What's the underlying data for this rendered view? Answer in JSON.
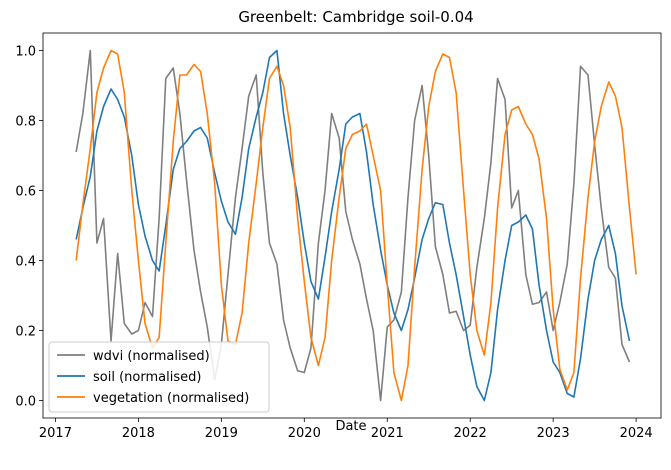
{
  "chart_data": {
    "type": "line",
    "title": "Greenbelt: Cambridge soil-0.04",
    "xlabel": "Date",
    "ylabel": "",
    "xlim": [
      2016.85,
      2024.3
    ],
    "ylim": [
      -0.05,
      1.05
    ],
    "xticks": [
      2017,
      2018,
      2019,
      2020,
      2021,
      2022,
      2023,
      2024
    ],
    "yticks": [
      0.0,
      0.2,
      0.4,
      0.6,
      0.8,
      1.0
    ],
    "ytick_labels": [
      "0.0",
      "0.2",
      "0.4",
      "0.6",
      "0.8",
      "1.0"
    ],
    "grid": false,
    "legend": "lower-left",
    "series": [
      {
        "name": "wdvi (normalised)",
        "color": "#7f7f7f",
        "points": [
          [
            2017.25,
            0.71
          ],
          [
            2017.33,
            0.82
          ],
          [
            2017.42,
            1.0
          ],
          [
            2017.5,
            0.45
          ],
          [
            2017.58,
            0.52
          ],
          [
            2017.67,
            0.17
          ],
          [
            2017.75,
            0.42
          ],
          [
            2017.83,
            0.22
          ],
          [
            2017.92,
            0.19
          ],
          [
            2018.0,
            0.2
          ],
          [
            2018.08,
            0.28
          ],
          [
            2018.17,
            0.24
          ],
          [
            2018.25,
            0.52
          ],
          [
            2018.33,
            0.92
          ],
          [
            2018.42,
            0.95
          ],
          [
            2018.5,
            0.82
          ],
          [
            2018.58,
            0.63
          ],
          [
            2018.67,
            0.43
          ],
          [
            2018.75,
            0.31
          ],
          [
            2018.83,
            0.21
          ],
          [
            2018.92,
            0.06
          ],
          [
            2019.0,
            0.16
          ],
          [
            2019.08,
            0.36
          ],
          [
            2019.17,
            0.58
          ],
          [
            2019.25,
            0.72
          ],
          [
            2019.33,
            0.87
          ],
          [
            2019.42,
            0.93
          ],
          [
            2019.5,
            0.65
          ],
          [
            2019.58,
            0.45
          ],
          [
            2019.67,
            0.39
          ],
          [
            2019.75,
            0.23
          ],
          [
            2019.83,
            0.15
          ],
          [
            2019.92,
            0.085
          ],
          [
            2020.0,
            0.08
          ],
          [
            2020.08,
            0.15
          ],
          [
            2020.17,
            0.45
          ],
          [
            2020.25,
            0.6
          ],
          [
            2020.33,
            0.82
          ],
          [
            2020.42,
            0.75
          ],
          [
            2020.5,
            0.54
          ],
          [
            2020.58,
            0.46
          ],
          [
            2020.67,
            0.39
          ],
          [
            2020.75,
            0.29
          ],
          [
            2020.83,
            0.2
          ],
          [
            2020.92,
            0.0
          ],
          [
            2021.0,
            0.21
          ],
          [
            2021.08,
            0.23
          ],
          [
            2021.17,
            0.31
          ],
          [
            2021.25,
            0.58
          ],
          [
            2021.33,
            0.8
          ],
          [
            2021.42,
            0.9
          ],
          [
            2021.5,
            0.7
          ],
          [
            2021.58,
            0.44
          ],
          [
            2021.67,
            0.36
          ],
          [
            2021.75,
            0.25
          ],
          [
            2021.83,
            0.255
          ],
          [
            2021.92,
            0.2
          ],
          [
            2022.0,
            0.215
          ],
          [
            2022.08,
            0.38
          ],
          [
            2022.17,
            0.52
          ],
          [
            2022.25,
            0.68
          ],
          [
            2022.33,
            0.92
          ],
          [
            2022.42,
            0.86
          ],
          [
            2022.5,
            0.55
          ],
          [
            2022.58,
            0.6
          ],
          [
            2022.67,
            0.36
          ],
          [
            2022.75,
            0.275
          ],
          [
            2022.83,
            0.28
          ],
          [
            2022.92,
            0.31
          ],
          [
            2023.0,
            0.2
          ],
          [
            2023.08,
            0.28
          ],
          [
            2023.17,
            0.39
          ],
          [
            2023.25,
            0.62
          ],
          [
            2023.33,
            0.955
          ],
          [
            2023.42,
            0.93
          ],
          [
            2023.5,
            0.73
          ],
          [
            2023.58,
            0.55
          ],
          [
            2023.67,
            0.38
          ],
          [
            2023.75,
            0.35
          ],
          [
            2023.83,
            0.16
          ],
          [
            2023.92,
            0.11
          ]
        ]
      },
      {
        "name": "soil (normalised)",
        "color": "#1f77b4",
        "points": [
          [
            2017.25,
            0.46
          ],
          [
            2017.33,
            0.55
          ],
          [
            2017.42,
            0.64
          ],
          [
            2017.5,
            0.77
          ],
          [
            2017.58,
            0.84
          ],
          [
            2017.67,
            0.89
          ],
          [
            2017.75,
            0.86
          ],
          [
            2017.83,
            0.81
          ],
          [
            2017.92,
            0.7
          ],
          [
            2018.0,
            0.56
          ],
          [
            2018.08,
            0.47
          ],
          [
            2018.17,
            0.4
          ],
          [
            2018.25,
            0.37
          ],
          [
            2018.33,
            0.5
          ],
          [
            2018.42,
            0.66
          ],
          [
            2018.5,
            0.72
          ],
          [
            2018.58,
            0.74
          ],
          [
            2018.67,
            0.77
          ],
          [
            2018.75,
            0.78
          ],
          [
            2018.83,
            0.75
          ],
          [
            2018.92,
            0.65
          ],
          [
            2019.0,
            0.57
          ],
          [
            2019.08,
            0.51
          ],
          [
            2019.17,
            0.475
          ],
          [
            2019.25,
            0.58
          ],
          [
            2019.33,
            0.72
          ],
          [
            2019.42,
            0.81
          ],
          [
            2019.5,
            0.88
          ],
          [
            2019.58,
            0.98
          ],
          [
            2019.67,
            1.0
          ],
          [
            2019.75,
            0.82
          ],
          [
            2019.83,
            0.7
          ],
          [
            2019.92,
            0.58
          ],
          [
            2020.0,
            0.45
          ],
          [
            2020.08,
            0.34
          ],
          [
            2020.17,
            0.29
          ],
          [
            2020.25,
            0.41
          ],
          [
            2020.33,
            0.54
          ],
          [
            2020.42,
            0.66
          ],
          [
            2020.5,
            0.79
          ],
          [
            2020.58,
            0.81
          ],
          [
            2020.67,
            0.82
          ],
          [
            2020.75,
            0.71
          ],
          [
            2020.83,
            0.56
          ],
          [
            2020.92,
            0.43
          ],
          [
            2021.0,
            0.33
          ],
          [
            2021.08,
            0.25
          ],
          [
            2021.17,
            0.2
          ],
          [
            2021.25,
            0.26
          ],
          [
            2021.33,
            0.35
          ],
          [
            2021.42,
            0.46
          ],
          [
            2021.5,
            0.52
          ],
          [
            2021.58,
            0.565
          ],
          [
            2021.67,
            0.56
          ],
          [
            2021.75,
            0.45
          ],
          [
            2021.83,
            0.36
          ],
          [
            2021.92,
            0.24
          ],
          [
            2022.0,
            0.13
          ],
          [
            2022.08,
            0.04
          ],
          [
            2022.17,
            0.0
          ],
          [
            2022.25,
            0.08
          ],
          [
            2022.33,
            0.26
          ],
          [
            2022.42,
            0.4
          ],
          [
            2022.5,
            0.5
          ],
          [
            2022.58,
            0.51
          ],
          [
            2022.67,
            0.53
          ],
          [
            2022.75,
            0.49
          ],
          [
            2022.83,
            0.33
          ],
          [
            2022.92,
            0.2
          ],
          [
            2023.0,
            0.11
          ],
          [
            2023.08,
            0.08
          ],
          [
            2023.17,
            0.02
          ],
          [
            2023.25,
            0.01
          ],
          [
            2023.33,
            0.12
          ],
          [
            2023.42,
            0.29
          ],
          [
            2023.5,
            0.4
          ],
          [
            2023.58,
            0.46
          ],
          [
            2023.67,
            0.5
          ],
          [
            2023.75,
            0.42
          ],
          [
            2023.83,
            0.27
          ],
          [
            2023.92,
            0.17
          ]
        ]
      },
      {
        "name": "vegetation (normalised)",
        "color": "#ff7f0e",
        "points": [
          [
            2017.25,
            0.4
          ],
          [
            2017.33,
            0.56
          ],
          [
            2017.42,
            0.72
          ],
          [
            2017.5,
            0.88
          ],
          [
            2017.58,
            0.95
          ],
          [
            2017.67,
            1.0
          ],
          [
            2017.75,
            0.99
          ],
          [
            2017.83,
            0.88
          ],
          [
            2017.92,
            0.6
          ],
          [
            2018.0,
            0.4
          ],
          [
            2018.08,
            0.22
          ],
          [
            2018.17,
            0.15
          ],
          [
            2018.25,
            0.18
          ],
          [
            2018.33,
            0.45
          ],
          [
            2018.42,
            0.74
          ],
          [
            2018.5,
            0.93
          ],
          [
            2018.58,
            0.93
          ],
          [
            2018.67,
            0.96
          ],
          [
            2018.75,
            0.94
          ],
          [
            2018.83,
            0.82
          ],
          [
            2018.92,
            0.62
          ],
          [
            2019.0,
            0.33
          ],
          [
            2019.08,
            0.17
          ],
          [
            2019.17,
            0.16
          ],
          [
            2019.25,
            0.25
          ],
          [
            2019.33,
            0.45
          ],
          [
            2019.42,
            0.62
          ],
          [
            2019.5,
            0.78
          ],
          [
            2019.58,
            0.92
          ],
          [
            2019.67,
            0.955
          ],
          [
            2019.75,
            0.9
          ],
          [
            2019.83,
            0.78
          ],
          [
            2019.92,
            0.52
          ],
          [
            2020.0,
            0.34
          ],
          [
            2020.08,
            0.18
          ],
          [
            2020.17,
            0.1
          ],
          [
            2020.25,
            0.18
          ],
          [
            2020.33,
            0.4
          ],
          [
            2020.42,
            0.58
          ],
          [
            2020.5,
            0.72
          ],
          [
            2020.58,
            0.76
          ],
          [
            2020.67,
            0.77
          ],
          [
            2020.75,
            0.79
          ],
          [
            2020.83,
            0.7
          ],
          [
            2020.92,
            0.6
          ],
          [
            2021.0,
            0.33
          ],
          [
            2021.08,
            0.08
          ],
          [
            2021.17,
            0.0
          ],
          [
            2021.25,
            0.1
          ],
          [
            2021.33,
            0.38
          ],
          [
            2021.42,
            0.66
          ],
          [
            2021.5,
            0.84
          ],
          [
            2021.58,
            0.94
          ],
          [
            2021.67,
            0.99
          ],
          [
            2021.75,
            0.98
          ],
          [
            2021.83,
            0.88
          ],
          [
            2021.92,
            0.6
          ],
          [
            2022.0,
            0.36
          ],
          [
            2022.08,
            0.2
          ],
          [
            2022.17,
            0.13
          ],
          [
            2022.25,
            0.28
          ],
          [
            2022.33,
            0.55
          ],
          [
            2022.42,
            0.76
          ],
          [
            2022.5,
            0.83
          ],
          [
            2022.58,
            0.84
          ],
          [
            2022.67,
            0.79
          ],
          [
            2022.75,
            0.76
          ],
          [
            2022.83,
            0.69
          ],
          [
            2022.92,
            0.52
          ],
          [
            2023.0,
            0.26
          ],
          [
            2023.08,
            0.09
          ],
          [
            2023.17,
            0.03
          ],
          [
            2023.25,
            0.08
          ],
          [
            2023.33,
            0.35
          ],
          [
            2023.42,
            0.58
          ],
          [
            2023.5,
            0.74
          ],
          [
            2023.58,
            0.84
          ],
          [
            2023.67,
            0.91
          ],
          [
            2023.75,
            0.87
          ],
          [
            2023.83,
            0.78
          ],
          [
            2023.92,
            0.55
          ],
          [
            2024.0,
            0.36
          ]
        ]
      }
    ]
  }
}
